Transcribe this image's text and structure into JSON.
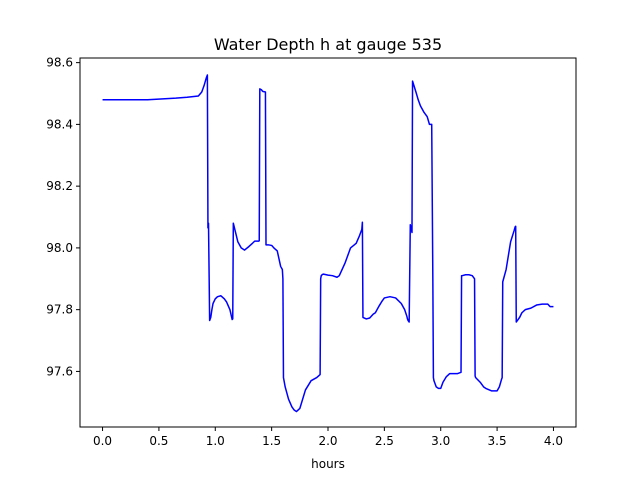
{
  "chart_data": {
    "type": "line",
    "title": "Water Depth h at gauge 535",
    "xlabel": "hours",
    "ylabel": "",
    "xlim": [
      -0.2,
      4.2
    ],
    "ylim": [
      97.42,
      98.615
    ],
    "xticks": [
      0.0,
      0.5,
      1.0,
      1.5,
      2.0,
      2.5,
      3.0,
      3.5,
      4.0
    ],
    "xtick_labels": [
      "0.0",
      "0.5",
      "1.0",
      "1.5",
      "2.0",
      "2.5",
      "3.0",
      "3.5",
      "4.0"
    ],
    "yticks": [
      97.6,
      97.8,
      98.0,
      98.2,
      98.4,
      98.6
    ],
    "ytick_labels": [
      "97.6",
      "97.8",
      "98.0",
      "98.2",
      "98.4",
      "98.6"
    ],
    "grid": false,
    "legend": "none",
    "series": [
      {
        "color": "#0000ff",
        "x": [
          0.0,
          0.2,
          0.4,
          0.65,
          0.75,
          0.85,
          0.88,
          0.9,
          0.92,
          0.93,
          0.935,
          0.94,
          0.95,
          0.96,
          0.97,
          0.98,
          1.0,
          1.02,
          1.05,
          1.08,
          1.1,
          1.13,
          1.15,
          1.155,
          1.16,
          1.18,
          1.2,
          1.23,
          1.26,
          1.3,
          1.33,
          1.35,
          1.385,
          1.39,
          1.395,
          1.41,
          1.42,
          1.445,
          1.45,
          1.455,
          1.47,
          1.5,
          1.52,
          1.55,
          1.58,
          1.595,
          1.6,
          1.605,
          1.62,
          1.65,
          1.68,
          1.7,
          1.72,
          1.75,
          1.8,
          1.85,
          1.9,
          1.93,
          1.935,
          1.94,
          1.95,
          1.96,
          2.0,
          2.04,
          2.08,
          2.1,
          2.15,
          2.2,
          2.25,
          2.28,
          2.3,
          2.305,
          2.31,
          2.34,
          2.37,
          2.4,
          2.42,
          2.45,
          2.48,
          2.5,
          2.55,
          2.6,
          2.65,
          2.68,
          2.7,
          2.705,
          2.71,
          2.72,
          2.73,
          2.74,
          2.745,
          2.75,
          2.78,
          2.8,
          2.82,
          2.85,
          2.88,
          2.9,
          2.92,
          2.93,
          2.935,
          2.94,
          2.96,
          2.98,
          3.0,
          3.02,
          3.05,
          3.08,
          3.1,
          3.15,
          3.18,
          3.185,
          3.19,
          3.22,
          3.25,
          3.28,
          3.3,
          3.305,
          3.31,
          3.35,
          3.38,
          3.4,
          3.45,
          3.5,
          3.52,
          3.54,
          3.545,
          3.55,
          3.58,
          3.6,
          3.62,
          3.65,
          3.66,
          3.665,
          3.67,
          3.7,
          3.72,
          3.75,
          3.8,
          3.85,
          3.9,
          3.95,
          3.97,
          4.0
        ],
        "y": [
          98.48,
          98.48,
          98.48,
          98.485,
          98.488,
          98.492,
          98.505,
          98.525,
          98.55,
          98.56,
          98.065,
          98.08,
          97.765,
          97.775,
          97.8,
          97.82,
          97.835,
          97.842,
          97.845,
          97.835,
          97.825,
          97.8,
          97.768,
          97.77,
          98.08,
          98.05,
          98.02,
          98.0,
          97.993,
          98.005,
          98.015,
          98.022,
          98.022,
          98.023,
          98.515,
          98.512,
          98.507,
          98.505,
          98.01,
          98.01,
          98.01,
          98.008,
          98.0,
          97.99,
          97.94,
          97.93,
          97.9,
          97.58,
          97.55,
          97.51,
          97.485,
          97.475,
          97.47,
          97.48,
          97.54,
          97.57,
          97.58,
          97.59,
          97.9,
          97.91,
          97.914,
          97.915,
          97.912,
          97.91,
          97.905,
          97.91,
          97.95,
          98.0,
          98.015,
          98.04,
          98.06,
          98.083,
          97.775,
          97.77,
          97.773,
          97.785,
          97.79,
          97.81,
          97.828,
          97.838,
          97.842,
          97.838,
          97.82,
          97.8,
          97.778,
          97.77,
          97.765,
          97.76,
          98.075,
          98.06,
          98.05,
          98.54,
          98.505,
          98.48,
          98.46,
          98.44,
          98.425,
          98.4,
          98.4,
          97.9,
          97.58,
          97.57,
          97.55,
          97.545,
          97.545,
          97.565,
          97.583,
          97.593,
          97.593,
          97.593,
          97.597,
          97.91,
          97.91,
          97.913,
          97.913,
          97.91,
          97.9,
          97.585,
          97.58,
          97.565,
          97.55,
          97.545,
          97.537,
          97.537,
          97.55,
          97.575,
          97.58,
          97.89,
          97.93,
          97.975,
          98.02,
          98.055,
          98.068,
          98.07,
          97.76,
          97.775,
          97.79,
          97.8,
          97.805,
          97.815,
          97.818,
          97.818,
          97.81,
          97.81
        ]
      }
    ]
  }
}
